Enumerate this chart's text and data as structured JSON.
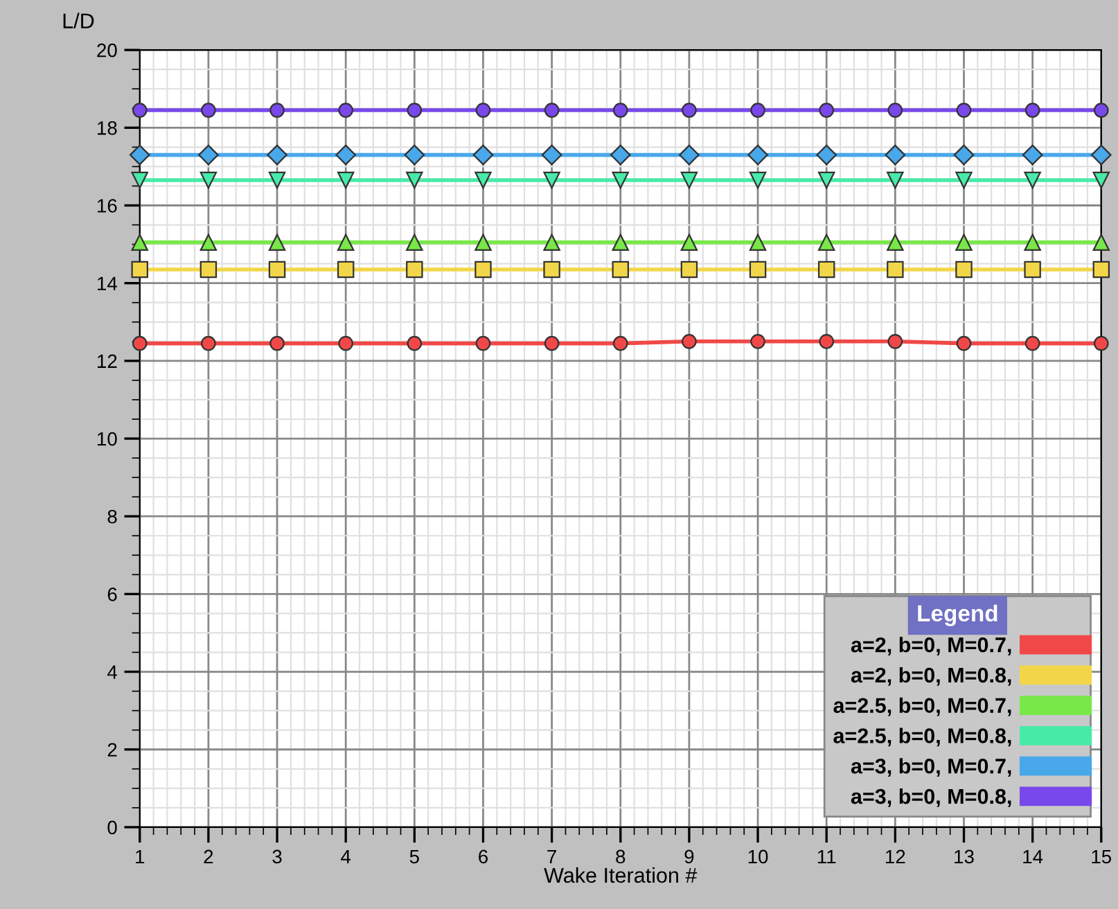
{
  "chart_data": {
    "type": "line",
    "xlabel": "Wake Iteration #",
    "ylabel": "L/D",
    "legend_title": "Legend",
    "x": [
      1,
      2,
      3,
      4,
      5,
      6,
      7,
      8,
      9,
      10,
      11,
      12,
      13,
      14,
      15
    ],
    "series": [
      {
        "name": "a=2, b=0, M=0.7,",
        "color": "#f04848",
        "marker": "circle",
        "values": [
          12.45,
          12.45,
          12.45,
          12.45,
          12.45,
          12.45,
          12.45,
          12.45,
          12.5,
          12.5,
          12.5,
          12.5,
          12.45,
          12.45,
          12.45
        ]
      },
      {
        "name": "a=2, b=0, M=0.8,",
        "color": "#f2d64a",
        "marker": "square",
        "values": [
          14.35,
          14.35,
          14.35,
          14.35,
          14.35,
          14.35,
          14.35,
          14.35,
          14.35,
          14.35,
          14.35,
          14.35,
          14.35,
          14.35,
          14.35
        ]
      },
      {
        "name": "a=2.5, b=0, M=0.7,",
        "color": "#78e848",
        "marker": "triangle",
        "values": [
          15.05,
          15.05,
          15.05,
          15.05,
          15.05,
          15.05,
          15.05,
          15.05,
          15.05,
          15.05,
          15.05,
          15.05,
          15.05,
          15.05,
          15.05
        ]
      },
      {
        "name": "a=2.5, b=0, M=0.8,",
        "color": "#48eaa8",
        "marker": "triangle_down",
        "values": [
          16.65,
          16.65,
          16.65,
          16.65,
          16.65,
          16.65,
          16.65,
          16.65,
          16.65,
          16.65,
          16.65,
          16.65,
          16.65,
          16.65,
          16.65
        ]
      },
      {
        "name": "a=3, b=0, M=0.7,",
        "color": "#48a8ea",
        "marker": "diamond",
        "values": [
          17.3,
          17.3,
          17.3,
          17.3,
          17.3,
          17.3,
          17.3,
          17.3,
          17.3,
          17.3,
          17.3,
          17.3,
          17.3,
          17.3,
          17.3
        ]
      },
      {
        "name": "a=3, b=0, M=0.8,",
        "color": "#7848ea",
        "marker": "circle",
        "values": [
          18.45,
          18.45,
          18.45,
          18.45,
          18.45,
          18.45,
          18.45,
          18.45,
          18.45,
          18.45,
          18.45,
          18.45,
          18.45,
          18.45,
          18.45
        ]
      }
    ],
    "xlim": [
      1,
      15
    ],
    "xticks": [
      1,
      2,
      3,
      4,
      5,
      6,
      7,
      8,
      9,
      10,
      11,
      12,
      13,
      14,
      15
    ],
    "ylim": [
      0,
      20
    ],
    "yticks": [
      0,
      2,
      4,
      6,
      8,
      10,
      12,
      14,
      16,
      18,
      20
    ],
    "grid": true,
    "legend": "bottom right",
    "line_style": "solid"
  }
}
